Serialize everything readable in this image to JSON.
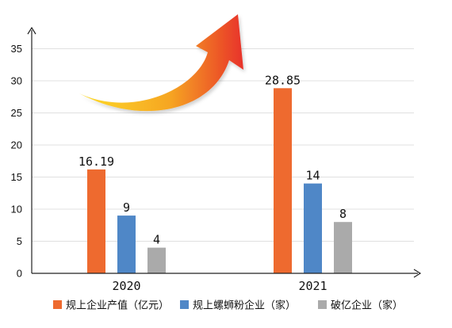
{
  "chart_data": {
    "type": "bar",
    "categories": [
      "2020",
      "2021"
    ],
    "series": [
      {
        "name": "规上企业产值（亿元）",
        "values": [
          16.19,
          28.85
        ],
        "labels": [
          "16.19",
          "28.85"
        ],
        "color": "#ee6a2f"
      },
      {
        "name": "规上螺蛳粉企业（家）",
        "values": [
          9,
          14
        ],
        "labels": [
          "9",
          "14"
        ],
        "color": "#4f87c7"
      },
      {
        "name": "破亿企业（家）",
        "values": [
          4,
          8
        ],
        "labels": [
          "4",
          "8"
        ],
        "color": "#aaaaaa"
      }
    ],
    "y_ticks": [
      "0",
      "5",
      "10",
      "15",
      "20",
      "25",
      "30",
      "35"
    ],
    "ylim": [
      0,
      40
    ],
    "grid": true,
    "legend_position": "bottom",
    "decoration": "rising-arrow",
    "arrow_colors": [
      "#fddb2a",
      "#f6a623",
      "#e8322a"
    ],
    "axis_color": "#222222",
    "grid_color": "#e0e0e0"
  }
}
